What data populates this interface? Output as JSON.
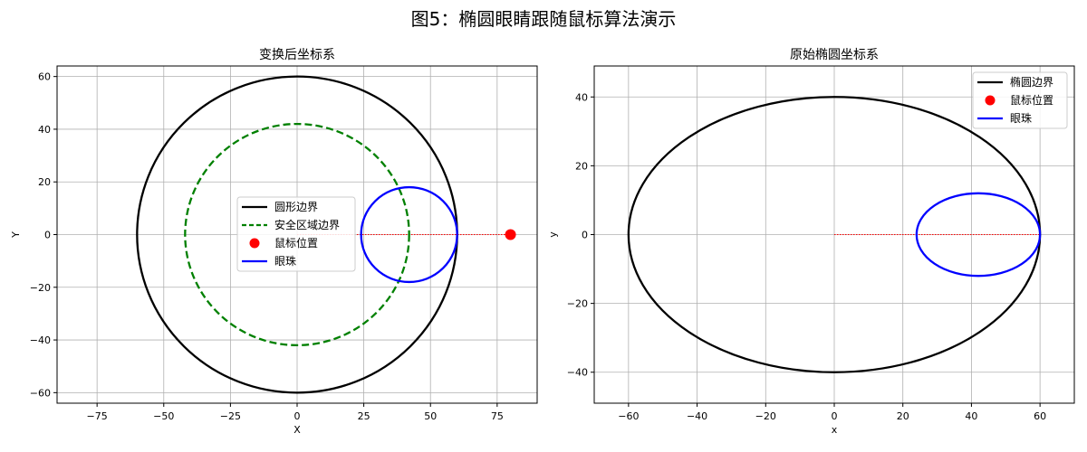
{
  "figure_title": "图5：椭圆眼睛跟随鼠标算法演示",
  "chart_data": [
    {
      "type": "line",
      "title": "变换后坐标系",
      "xlabel": "X",
      "ylabel": "Y",
      "xlim": [
        -90,
        90
      ],
      "ylim": [
        -64,
        64
      ],
      "xticks": [
        -75,
        -50,
        -25,
        0,
        25,
        50,
        75
      ],
      "yticks": [
        -60,
        -40,
        -20,
        0,
        20,
        40,
        60
      ],
      "grid": true,
      "legend_position": "center-right",
      "series": [
        {
          "name": "圆形边界",
          "kind": "ellipse",
          "cx": 0,
          "cy": 0,
          "rx": 60,
          "ry": 60,
          "color": "#000000",
          "style": "solid"
        },
        {
          "name": "安全区域边界",
          "kind": "ellipse",
          "cx": 0,
          "cy": 0,
          "rx": 42,
          "ry": 42,
          "color": "#008000",
          "style": "dashed"
        },
        {
          "name": "鼠标位置",
          "kind": "point",
          "x": 80,
          "y": 0,
          "color": "#ff0000"
        },
        {
          "name": "眼珠",
          "kind": "ellipse",
          "cx": 42,
          "cy": 0,
          "rx": 18,
          "ry": 18,
          "color": "#0000ff",
          "style": "solid"
        }
      ],
      "guide_line": {
        "x": [
          0,
          80
        ],
        "y": [
          0,
          0
        ],
        "color": "#ff0000",
        "style": "dotted"
      }
    },
    {
      "type": "line",
      "title": "原始椭圆坐标系",
      "xlabel": "x",
      "ylabel": "y",
      "xlim": [
        -70,
        70
      ],
      "ylim": [
        -49,
        49
      ],
      "xticks": [
        -60,
        -40,
        -20,
        0,
        20,
        40,
        60
      ],
      "yticks": [
        -40,
        -20,
        0,
        20,
        40
      ],
      "grid": true,
      "legend_position": "top-right",
      "series": [
        {
          "name": "椭圆边界",
          "kind": "ellipse",
          "cx": 0,
          "cy": 0,
          "rx": 60,
          "ry": 40,
          "color": "#000000",
          "style": "solid"
        },
        {
          "name": "鼠标位置",
          "kind": "point",
          "legend_only": true,
          "color": "#ff0000"
        },
        {
          "name": "眼珠",
          "kind": "ellipse",
          "cx": 42,
          "cy": 0,
          "rx": 18,
          "ry": 12,
          "color": "#0000ff",
          "style": "solid"
        }
      ],
      "guide_line": {
        "x": [
          0,
          60
        ],
        "y": [
          0,
          0
        ],
        "color": "#ff0000",
        "style": "dotted"
      }
    }
  ]
}
